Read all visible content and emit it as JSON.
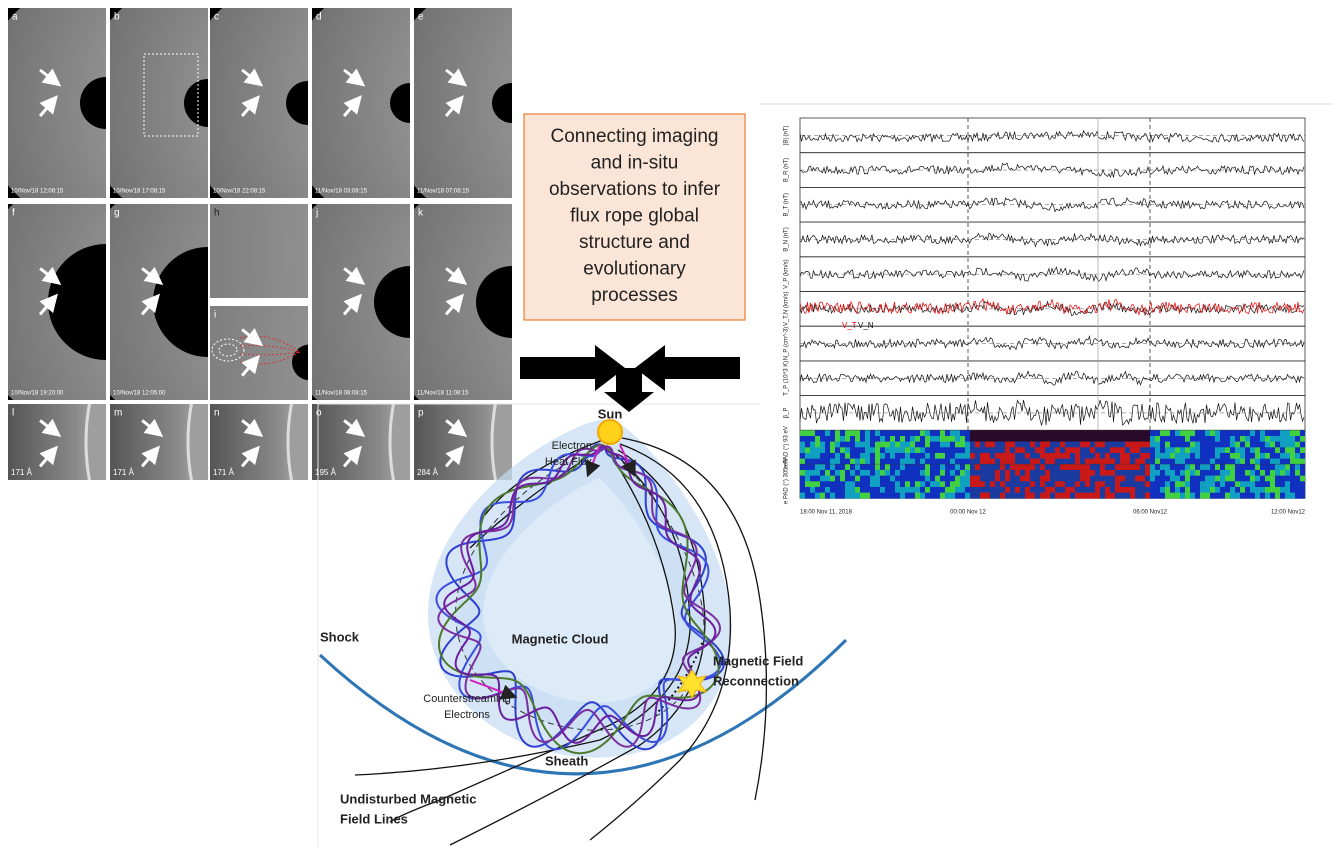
{
  "images": {
    "panels": [
      {
        "letter": "a",
        "time": "10/Nov/18 12:08:15"
      },
      {
        "letter": "b",
        "time": "10/Nov/18 17:08:15"
      },
      {
        "letter": "c",
        "time": "10/Nov/18 22:08:15"
      },
      {
        "letter": "d",
        "time": "11/Nov/18 03:08:15"
      },
      {
        "letter": "e",
        "time": "11/Nov/18 07:08:15"
      },
      {
        "letter": "f",
        "time": "10/Nov/18 19:20:00"
      },
      {
        "letter": "g",
        "time": "10/Nov/18 12:05:00"
      },
      {
        "letter": "h"
      },
      {
        "letter": "i"
      },
      {
        "letter": "j",
        "time": "11/Nov/18 08:08:15"
      },
      {
        "letter": "k",
        "time": "11/Nov/18 11:08:15"
      },
      {
        "letter": "l",
        "time": "171 Å"
      },
      {
        "letter": "m",
        "time": "171 Å"
      },
      {
        "letter": "n",
        "time": "171 Å"
      },
      {
        "letter": "o",
        "time": "195 Å"
      },
      {
        "letter": "p",
        "time": "284 Å"
      }
    ]
  },
  "summary_box": {
    "lines": [
      "Connecting imaging",
      "and in-situ",
      "observations to infer",
      "flux rope global",
      "structure and",
      "evolutionary",
      "processes"
    ]
  },
  "diagram": {
    "sun": "Sun",
    "heat_flux": [
      "Electron",
      "Heat Flux"
    ],
    "shock": "Shock",
    "cloud": "Magnetic Cloud",
    "reconnection": [
      "Magnetic Field",
      "Reconnection"
    ],
    "counterstreaming": [
      "Counterstreaming",
      "Electrons"
    ],
    "sheath": "Sheath",
    "undisturbed": [
      "Undisturbed Magnetic",
      "Field Lines"
    ]
  },
  "insitu_plot": {
    "panel_labels": [
      "|B| (nT)",
      "B_R (nT)",
      "B_T (nT)",
      "B_N (nT)",
      "V_P (km/s)",
      "V_T,N (km/s)",
      "N_P (cm^-3)",
      "T_P (10^3 K)",
      "β_P",
      "e PAD (°) 93 eV",
      "e PAD (°) 305 eV"
    ],
    "legend": [
      "V_T",
      "V_N"
    ],
    "time_labels": [
      "18:00 Nov 11, 2018",
      "00:00 Nov 12",
      "06:00 Nov12",
      "12:00 Nov12"
    ]
  }
}
